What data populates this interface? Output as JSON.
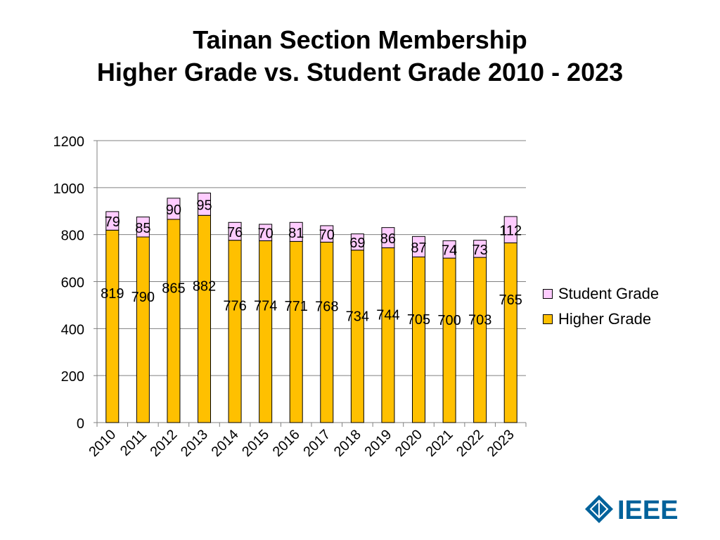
{
  "title": {
    "line1": "Tainan Section Membership",
    "line2": "Higher Grade vs. Student Grade 2010 - 2023"
  },
  "logo": {
    "text": "IEEE"
  },
  "colors": {
    "higher": "#FFC000",
    "student": "#FFCCFF",
    "grid": "#808080"
  },
  "chart_data": {
    "type": "bar",
    "stacked": true,
    "categories": [
      "2010",
      "2011",
      "2012",
      "2013",
      "2014",
      "2015",
      "2016",
      "2017",
      "2018",
      "2019",
      "2020",
      "2021",
      "2022",
      "2023"
    ],
    "series": [
      {
        "name": "Higher Grade",
        "values": [
          819,
          790,
          865,
          882,
          776,
          774,
          771,
          768,
          734,
          744,
          705,
          700,
          703,
          765
        ]
      },
      {
        "name": "Student Grade",
        "values": [
          79,
          85,
          90,
          95,
          76,
          70,
          81,
          70,
          69,
          86,
          87,
          74,
          73,
          112
        ]
      }
    ],
    "y_ticks": [
      0,
      200,
      400,
      600,
      800,
      1000,
      1200
    ],
    "ylim": [
      0,
      1200
    ],
    "grid": true,
    "legend": "right"
  }
}
